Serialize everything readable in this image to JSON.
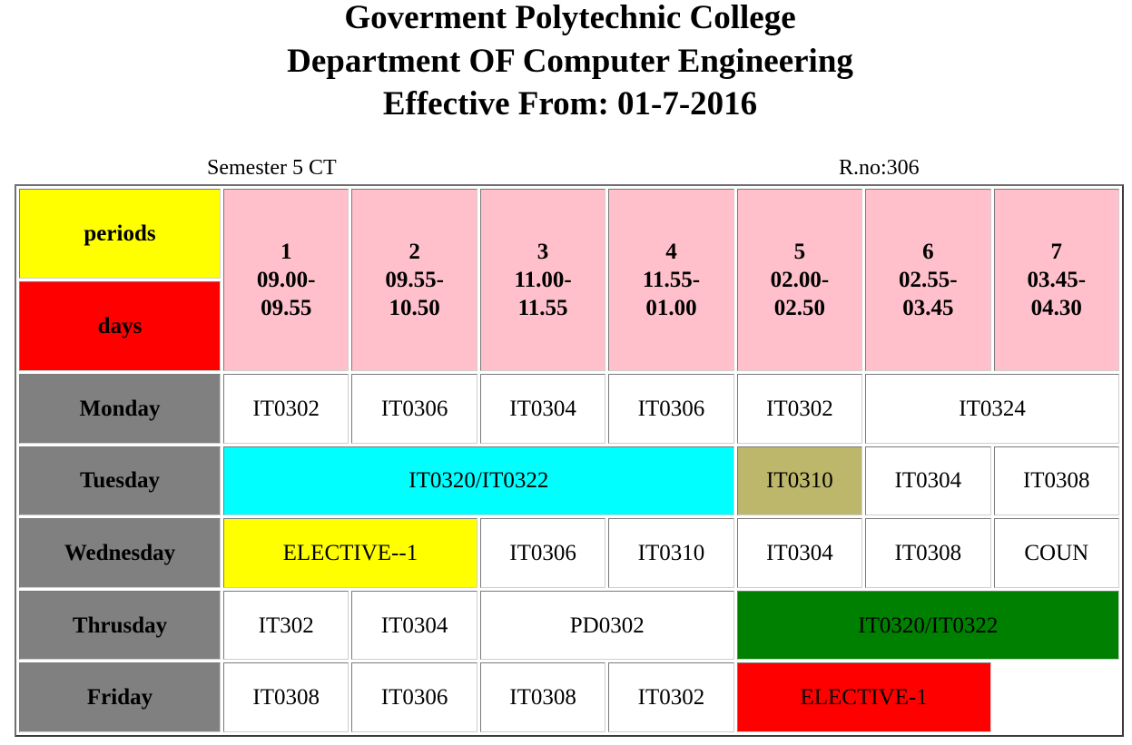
{
  "header": {
    "line1": "Goverment Polytechnic College",
    "line2": "Department OF Computer Engineering",
    "line3": "Effective From: 01-7-2016"
  },
  "meta": {
    "semester": "Semester 5 CT",
    "room": "R.no:306"
  },
  "corner": {
    "periods_label": "periods",
    "days_label": "days",
    "periods_color": "#ffff00",
    "days_color": "#ff0000"
  },
  "periods": [
    {
      "num": "1",
      "start": "09.00-",
      "end": "09.55"
    },
    {
      "num": "2",
      "start": "09.55-",
      "end": "10.50"
    },
    {
      "num": "3",
      "start": "11.00-",
      "end": "11.55"
    },
    {
      "num": "4",
      "start": "11.55-",
      "end": "01.00"
    },
    {
      "num": "5",
      "start": "02.00-",
      "end": "02.50"
    },
    {
      "num": "6",
      "start": "02.55-",
      "end": "03.45"
    },
    {
      "num": "7",
      "start": "03.45-",
      "end": "04.30"
    }
  ],
  "days": [
    {
      "name": "Monday",
      "slots": [
        {
          "text": "IT0302",
          "span": 1,
          "color": "#ffffff"
        },
        {
          "text": "IT0306",
          "span": 1,
          "color": "#ffffff"
        },
        {
          "text": "IT0304",
          "span": 1,
          "color": "#ffffff"
        },
        {
          "text": "IT0306",
          "span": 1,
          "color": "#ffffff"
        },
        {
          "text": "IT0302",
          "span": 1,
          "color": "#ffffff"
        },
        {
          "text": "IT0324",
          "span": 2,
          "color": "#ffffff"
        }
      ]
    },
    {
      "name": "Tuesday",
      "slots": [
        {
          "text": "IT0320/IT0322",
          "span": 4,
          "color": "#00ffff"
        },
        {
          "text": "IT0310",
          "span": 1,
          "color": "#bdb76b"
        },
        {
          "text": "IT0304",
          "span": 1,
          "color": "#ffffff"
        },
        {
          "text": "IT0308",
          "span": 1,
          "color": "#ffffff"
        }
      ]
    },
    {
      "name": "Wednesday",
      "slots": [
        {
          "text": "ELECTIVE--1",
          "span": 2,
          "color": "#ffff00"
        },
        {
          "text": "IT0306",
          "span": 1,
          "color": "#ffffff"
        },
        {
          "text": "IT0310",
          "span": 1,
          "color": "#ffffff"
        },
        {
          "text": "IT0304",
          "span": 1,
          "color": "#ffffff"
        },
        {
          "text": "IT0308",
          "span": 1,
          "color": "#ffffff"
        },
        {
          "text": "COUN",
          "span": 1,
          "color": "#ffffff"
        }
      ]
    },
    {
      "name": "Thrusday",
      "slots": [
        {
          "text": "IT302",
          "span": 1,
          "color": "#ffffff"
        },
        {
          "text": "IT0304",
          "span": 1,
          "color": "#ffffff"
        },
        {
          "text": "PD0302",
          "span": 2,
          "color": "#ffffff"
        },
        {
          "text": "IT0320/IT0322",
          "span": 3,
          "color": "#008000"
        }
      ]
    },
    {
      "name": "Friday",
      "slots": [
        {
          "text": "IT0308",
          "span": 1,
          "color": "#ffffff"
        },
        {
          "text": "IT0306",
          "span": 1,
          "color": "#ffffff"
        },
        {
          "text": "IT0308",
          "span": 1,
          "color": "#ffffff"
        },
        {
          "text": "IT0302",
          "span": 1,
          "color": "#ffffff"
        },
        {
          "text": "ELECTIVE-1",
          "span": 2,
          "color": "#ff0000"
        },
        {
          "text": "",
          "span": 1,
          "color": "empty"
        }
      ]
    }
  ]
}
